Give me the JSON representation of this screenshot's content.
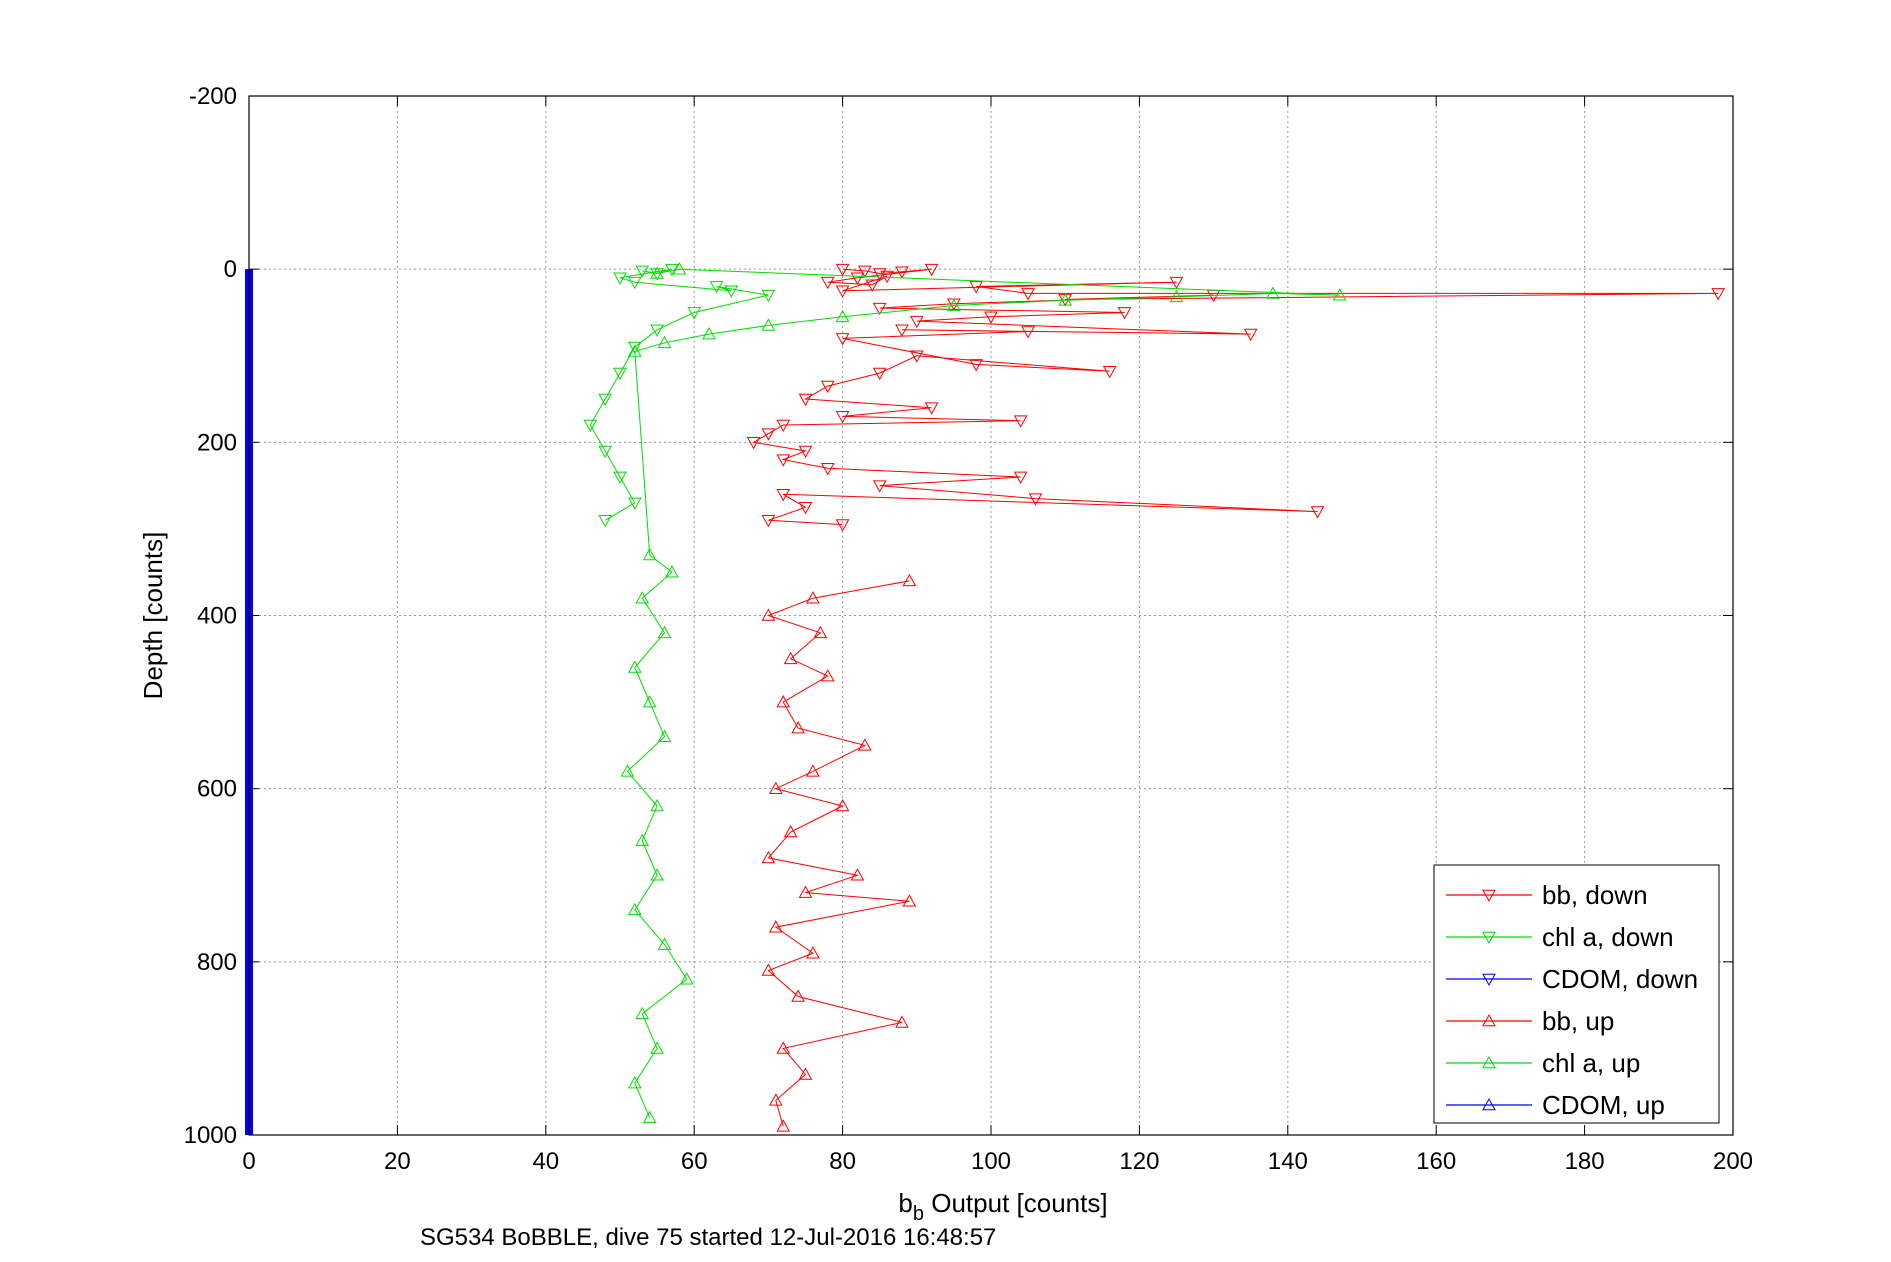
{
  "chart_data": {
    "type": "scatter",
    "title": "",
    "caption": "SG534 BoBBLE, dive 75 started 12-Jul-2016 16:48:57",
    "xlabel_main": "b",
    "xlabel_sub": "b",
    "xlabel_rest": " Output [counts]",
    "ylabel": "Depth [counts]",
    "xlim": [
      0,
      200
    ],
    "ylim": [
      -200,
      1000
    ],
    "y_reversed": true,
    "x_ticks": [
      0,
      20,
      40,
      60,
      80,
      100,
      120,
      140,
      160,
      180,
      200
    ],
    "y_ticks": [
      -200,
      0,
      200,
      400,
      600,
      800,
      1000
    ],
    "x_tick_labels": [
      "0",
      "20",
      "40",
      "60",
      "80",
      "100",
      "120",
      "140",
      "160",
      "180",
      "200"
    ],
    "y_tick_labels": [
      "-200",
      "0",
      "200",
      "400",
      "600",
      "800",
      "1000"
    ],
    "grid": true,
    "legend_position": "bottom-right",
    "colors": {
      "bb": "#ff0000",
      "chl": "#00dd00",
      "cdom": "#0000ff"
    },
    "series": [
      {
        "name": "bb, down",
        "color": "#ff0000",
        "marker": "triangle-down",
        "points": [
          [
            80,
            0
          ],
          [
            83,
            2
          ],
          [
            85,
            5
          ],
          [
            88,
            3
          ],
          [
            92,
            0
          ],
          [
            82,
            10
          ],
          [
            78,
            15
          ],
          [
            84,
            18
          ],
          [
            86,
            8
          ],
          [
            80,
            25
          ],
          [
            125,
            15
          ],
          [
            98,
            20
          ],
          [
            105,
            28
          ],
          [
            198,
            28
          ],
          [
            110,
            35
          ],
          [
            130,
            30
          ],
          [
            95,
            40
          ],
          [
            85,
            45
          ],
          [
            118,
            50
          ],
          [
            100,
            55
          ],
          [
            90,
            60
          ],
          [
            135,
            75
          ],
          [
            88,
            70
          ],
          [
            105,
            72
          ],
          [
            80,
            80
          ],
          [
            98,
            110
          ],
          [
            116,
            118
          ],
          [
            90,
            100
          ],
          [
            85,
            120
          ],
          [
            78,
            135
          ],
          [
            75,
            150
          ],
          [
            92,
            160
          ],
          [
            80,
            170
          ],
          [
            104,
            175
          ],
          [
            72,
            180
          ],
          [
            70,
            190
          ],
          [
            68,
            200
          ],
          [
            75,
            210
          ],
          [
            72,
            220
          ],
          [
            78,
            230
          ],
          [
            104,
            240
          ],
          [
            85,
            250
          ],
          [
            106,
            265
          ],
          [
            144,
            280
          ],
          [
            72,
            260
          ],
          [
            75,
            275
          ],
          [
            70,
            290
          ],
          [
            80,
            295
          ]
        ]
      },
      {
        "name": "chl a, down",
        "color": "#00dd00",
        "marker": "triangle-down",
        "points": [
          [
            53,
            2
          ],
          [
            55,
            5
          ],
          [
            57,
            0
          ],
          [
            50,
            10
          ],
          [
            52,
            15
          ],
          [
            65,
            25
          ],
          [
            63,
            20
          ],
          [
            70,
            30
          ],
          [
            60,
            50
          ],
          [
            55,
            70
          ],
          [
            52,
            90
          ],
          [
            50,
            120
          ],
          [
            48,
            150
          ],
          [
            46,
            180
          ],
          [
            48,
            210
          ],
          [
            50,
            240
          ],
          [
            52,
            270
          ],
          [
            48,
            290
          ]
        ]
      },
      {
        "name": "CDOM, down",
        "color": "#0000ff",
        "marker": "triangle-down",
        "points": []
      },
      {
        "name": "bb, up",
        "color": "#ff0000",
        "marker": "triangle-up",
        "points": [
          [
            89,
            360
          ],
          [
            76,
            380
          ],
          [
            70,
            400
          ],
          [
            77,
            420
          ],
          [
            73,
            450
          ],
          [
            78,
            470
          ],
          [
            72,
            500
          ],
          [
            74,
            530
          ],
          [
            83,
            550
          ],
          [
            76,
            580
          ],
          [
            71,
            600
          ],
          [
            80,
            620
          ],
          [
            73,
            650
          ],
          [
            70,
            680
          ],
          [
            82,
            700
          ],
          [
            75,
            720
          ],
          [
            89,
            730
          ],
          [
            71,
            760
          ],
          [
            76,
            790
          ],
          [
            70,
            810
          ],
          [
            74,
            840
          ],
          [
            88,
            870
          ],
          [
            72,
            900
          ],
          [
            75,
            930
          ],
          [
            71,
            960
          ],
          [
            72,
            990
          ]
        ]
      },
      {
        "name": "chl a, up",
        "color": "#00dd00",
        "marker": "triangle-up",
        "points": [
          [
            55,
            5
          ],
          [
            58,
            0
          ],
          [
            147,
            30
          ],
          [
            138,
            28
          ],
          [
            125,
            32
          ],
          [
            110,
            36
          ],
          [
            95,
            42
          ],
          [
            80,
            55
          ],
          [
            70,
            65
          ],
          [
            62,
            75
          ],
          [
            56,
            85
          ],
          [
            52,
            95
          ],
          [
            54,
            330
          ],
          [
            57,
            350
          ],
          [
            53,
            380
          ],
          [
            56,
            420
          ],
          [
            52,
            460
          ],
          [
            54,
            500
          ],
          [
            56,
            540
          ],
          [
            51,
            580
          ],
          [
            55,
            620
          ],
          [
            53,
            660
          ],
          [
            55,
            700
          ],
          [
            52,
            740
          ],
          [
            56,
            780
          ],
          [
            59,
            820
          ],
          [
            53,
            860
          ],
          [
            55,
            900
          ],
          [
            52,
            940
          ],
          [
            54,
            980
          ]
        ]
      },
      {
        "name": "CDOM, up",
        "color": "#0000ff",
        "marker": "triangle-up",
        "points": []
      }
    ],
    "cdom_line": {
      "x": 0,
      "y_from": 0,
      "y_to": 1000
    }
  }
}
